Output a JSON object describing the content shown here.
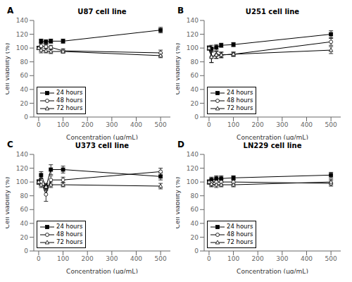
{
  "chart_data": [
    {
      "type": "line",
      "title": "U87 cell line",
      "annotations": [
        "A"
      ],
      "x": [
        0,
        10,
        30,
        50,
        100,
        500
      ],
      "xlim": [
        -20,
        540
      ],
      "xticks": [
        0,
        100,
        200,
        300,
        400,
        500
      ],
      "ylim": [
        0,
        140
      ],
      "yticks": [
        0,
        20,
        40,
        60,
        80,
        100,
        120,
        140
      ],
      "xlabel": "Concentration (µg/mL)",
      "ylabel": "Cell viability (%)",
      "legend": "lower left",
      "grid": false,
      "series": [
        {
          "name": "24 hours",
          "color": "black",
          "marker": "square",
          "values": [
            100,
            110,
            109,
            110,
            110,
            126
          ],
          "errors": [
            2,
            3,
            3,
            3,
            3,
            4
          ]
        },
        {
          "name": "48 hours",
          "color": "black",
          "marker": "circle-open",
          "values": [
            100,
            103,
            102,
            101,
            96,
            93
          ],
          "errors": [
            2,
            4,
            3,
            3,
            3,
            4
          ]
        },
        {
          "name": "72 hours",
          "color": "black",
          "marker": "triangle-open",
          "values": [
            100,
            97,
            96,
            95,
            95,
            89
          ],
          "errors": [
            2,
            4,
            3,
            3,
            2,
            3
          ]
        }
      ]
    },
    {
      "type": "line",
      "title": "U251 cell line",
      "annotations": [
        "B"
      ],
      "x": [
        0,
        10,
        30,
        50,
        100,
        500
      ],
      "xlim": [
        -20,
        540
      ],
      "xticks": [
        0,
        100,
        200,
        300,
        400,
        500
      ],
      "ylim": [
        0,
        140
      ],
      "yticks": [
        0,
        20,
        40,
        60,
        80,
        100,
        120,
        140
      ],
      "xlabel": "Concentration (µg/mL)",
      "ylabel": "Cell viability (%)",
      "legend": "lower left",
      "grid": false,
      "series": [
        {
          "name": "24 hours",
          "color": "black",
          "marker": "square",
          "values": [
            100,
            99,
            101,
            104,
            105,
            120
          ],
          "errors": [
            2,
            5,
            4,
            3,
            3,
            5
          ]
        },
        {
          "name": "48 hours",
          "color": "black",
          "marker": "circle-open",
          "values": [
            100,
            87,
            90,
            90,
            91,
            109
          ],
          "errors": [
            3,
            8,
            5,
            4,
            3,
            5
          ]
        },
        {
          "name": "72 hours",
          "color": "black",
          "marker": "triangle-open",
          "values": [
            100,
            87,
            90,
            90,
            91,
            97
          ],
          "errors": [
            3,
            8,
            5,
            4,
            3,
            5
          ]
        }
      ]
    },
    {
      "type": "line",
      "title": "U373 cell line",
      "annotations": [
        "C"
      ],
      "x": [
        0,
        10,
        30,
        50,
        100,
        500
      ],
      "xlim": [
        -20,
        540
      ],
      "xticks": [
        0,
        100,
        200,
        300,
        400,
        500
      ],
      "ylim": [
        0,
        140
      ],
      "yticks": [
        0,
        20,
        40,
        60,
        80,
        100,
        120,
        140
      ],
      "xlabel": "Concentration (µg/mL)",
      "ylabel": "Cell viability (%)",
      "legend": "lower left",
      "grid": false,
      "series": [
        {
          "name": "24 hours",
          "color": "black",
          "marker": "square",
          "values": [
            100,
            110,
            93,
            118,
            118,
            108
          ],
          "errors": [
            3,
            5,
            5,
            7,
            5,
            5
          ]
        },
        {
          "name": "48 hours",
          "color": "black",
          "marker": "circle-open",
          "values": [
            100,
            100,
            82,
            103,
            103,
            115
          ],
          "errors": [
            3,
            5,
            10,
            6,
            4,
            5
          ]
        },
        {
          "name": "72 hours",
          "color": "black",
          "marker": "triangle-open",
          "values": [
            100,
            96,
            93,
            96,
            96,
            94
          ],
          "errors": [
            3,
            4,
            4,
            4,
            3,
            4
          ]
        }
      ]
    },
    {
      "type": "line",
      "title": "LN229 cell line",
      "annotations": [
        "D"
      ],
      "x": [
        0,
        10,
        30,
        50,
        100,
        500
      ],
      "xlim": [
        -20,
        540
      ],
      "xticks": [
        0,
        100,
        200,
        300,
        400,
        500
      ],
      "ylim": [
        0,
        140
      ],
      "yticks": [
        0,
        20,
        40,
        60,
        80,
        100,
        120,
        140
      ],
      "xlabel": "Concentration (µg/mL)",
      "ylabel": "Cell viability (%)",
      "legend": "lower left",
      "grid": false,
      "series": [
        {
          "name": "24 hours",
          "color": "black",
          "marker": "square",
          "values": [
            100,
            103,
            105,
            105,
            106,
            110
          ],
          "errors": [
            2,
            4,
            4,
            4,
            3,
            4
          ]
        },
        {
          "name": "48 hours",
          "color": "black",
          "marker": "circle-open",
          "values": [
            100,
            99,
            100,
            100,
            100,
            98
          ],
          "errors": [
            3,
            5,
            4,
            4,
            3,
            4
          ]
        },
        {
          "name": "72 hours",
          "color": "black",
          "marker": "triangle-open",
          "values": [
            100,
            97,
            96,
            96,
            96,
            100
          ],
          "errors": [
            3,
            4,
            4,
            3,
            3,
            4
          ]
        }
      ]
    }
  ]
}
